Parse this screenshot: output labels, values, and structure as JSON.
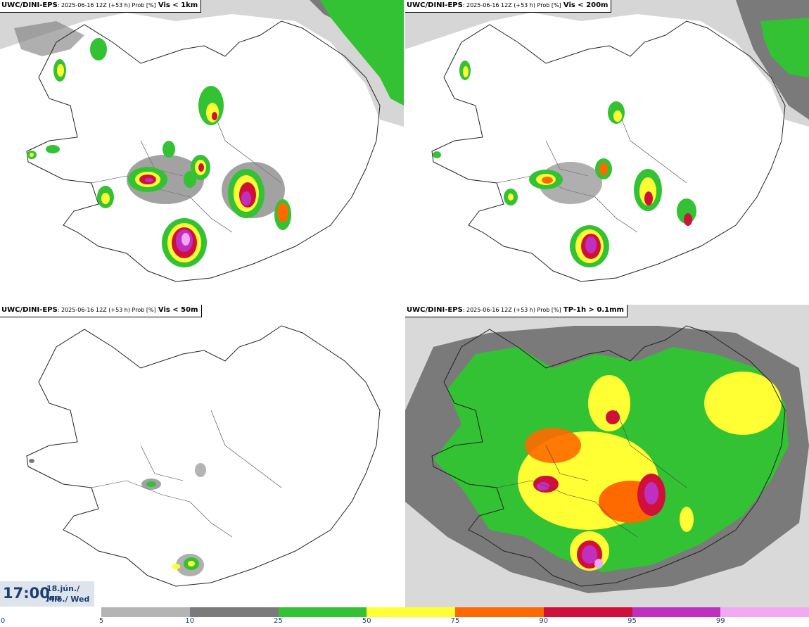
{
  "panels": [
    {
      "source": "UWC/DINI-EPS",
      "meta": ": 2025-06-16 12Z (+53 h) Prob [%]",
      "field": "Vis < 1km"
    },
    {
      "source": "UWC/DINI-EPS",
      "meta": ": 2025-06-16 12Z (+53 h) Prob [%]",
      "field": "Vis < 200m"
    },
    {
      "source": "UWC/DINI-EPS",
      "meta": ": 2025-06-16 12Z (+53 h) Prob [%]",
      "field": "Vis < 50m"
    },
    {
      "source": "UWC/DINI-EPS",
      "meta": ": 2025-06-16 12Z (+53 h) Prob [%]",
      "field": "TP-1h > 0.1mm"
    }
  ],
  "time": {
    "clock": "17:00",
    "date": "18.jún./ Jun",
    "weekday": "Mið./ Wed"
  },
  "colorbar": {
    "ticks": [
      "0",
      "5",
      "10",
      "25",
      "50",
      "75",
      "90",
      "95",
      "99"
    ],
    "colors": [
      "#b4b4b4",
      "#7a7a7a",
      "#33c233",
      "#ffff33",
      "#ff6a00",
      "#d0103a",
      "#c030c0",
      "#f2a8f2"
    ]
  }
}
